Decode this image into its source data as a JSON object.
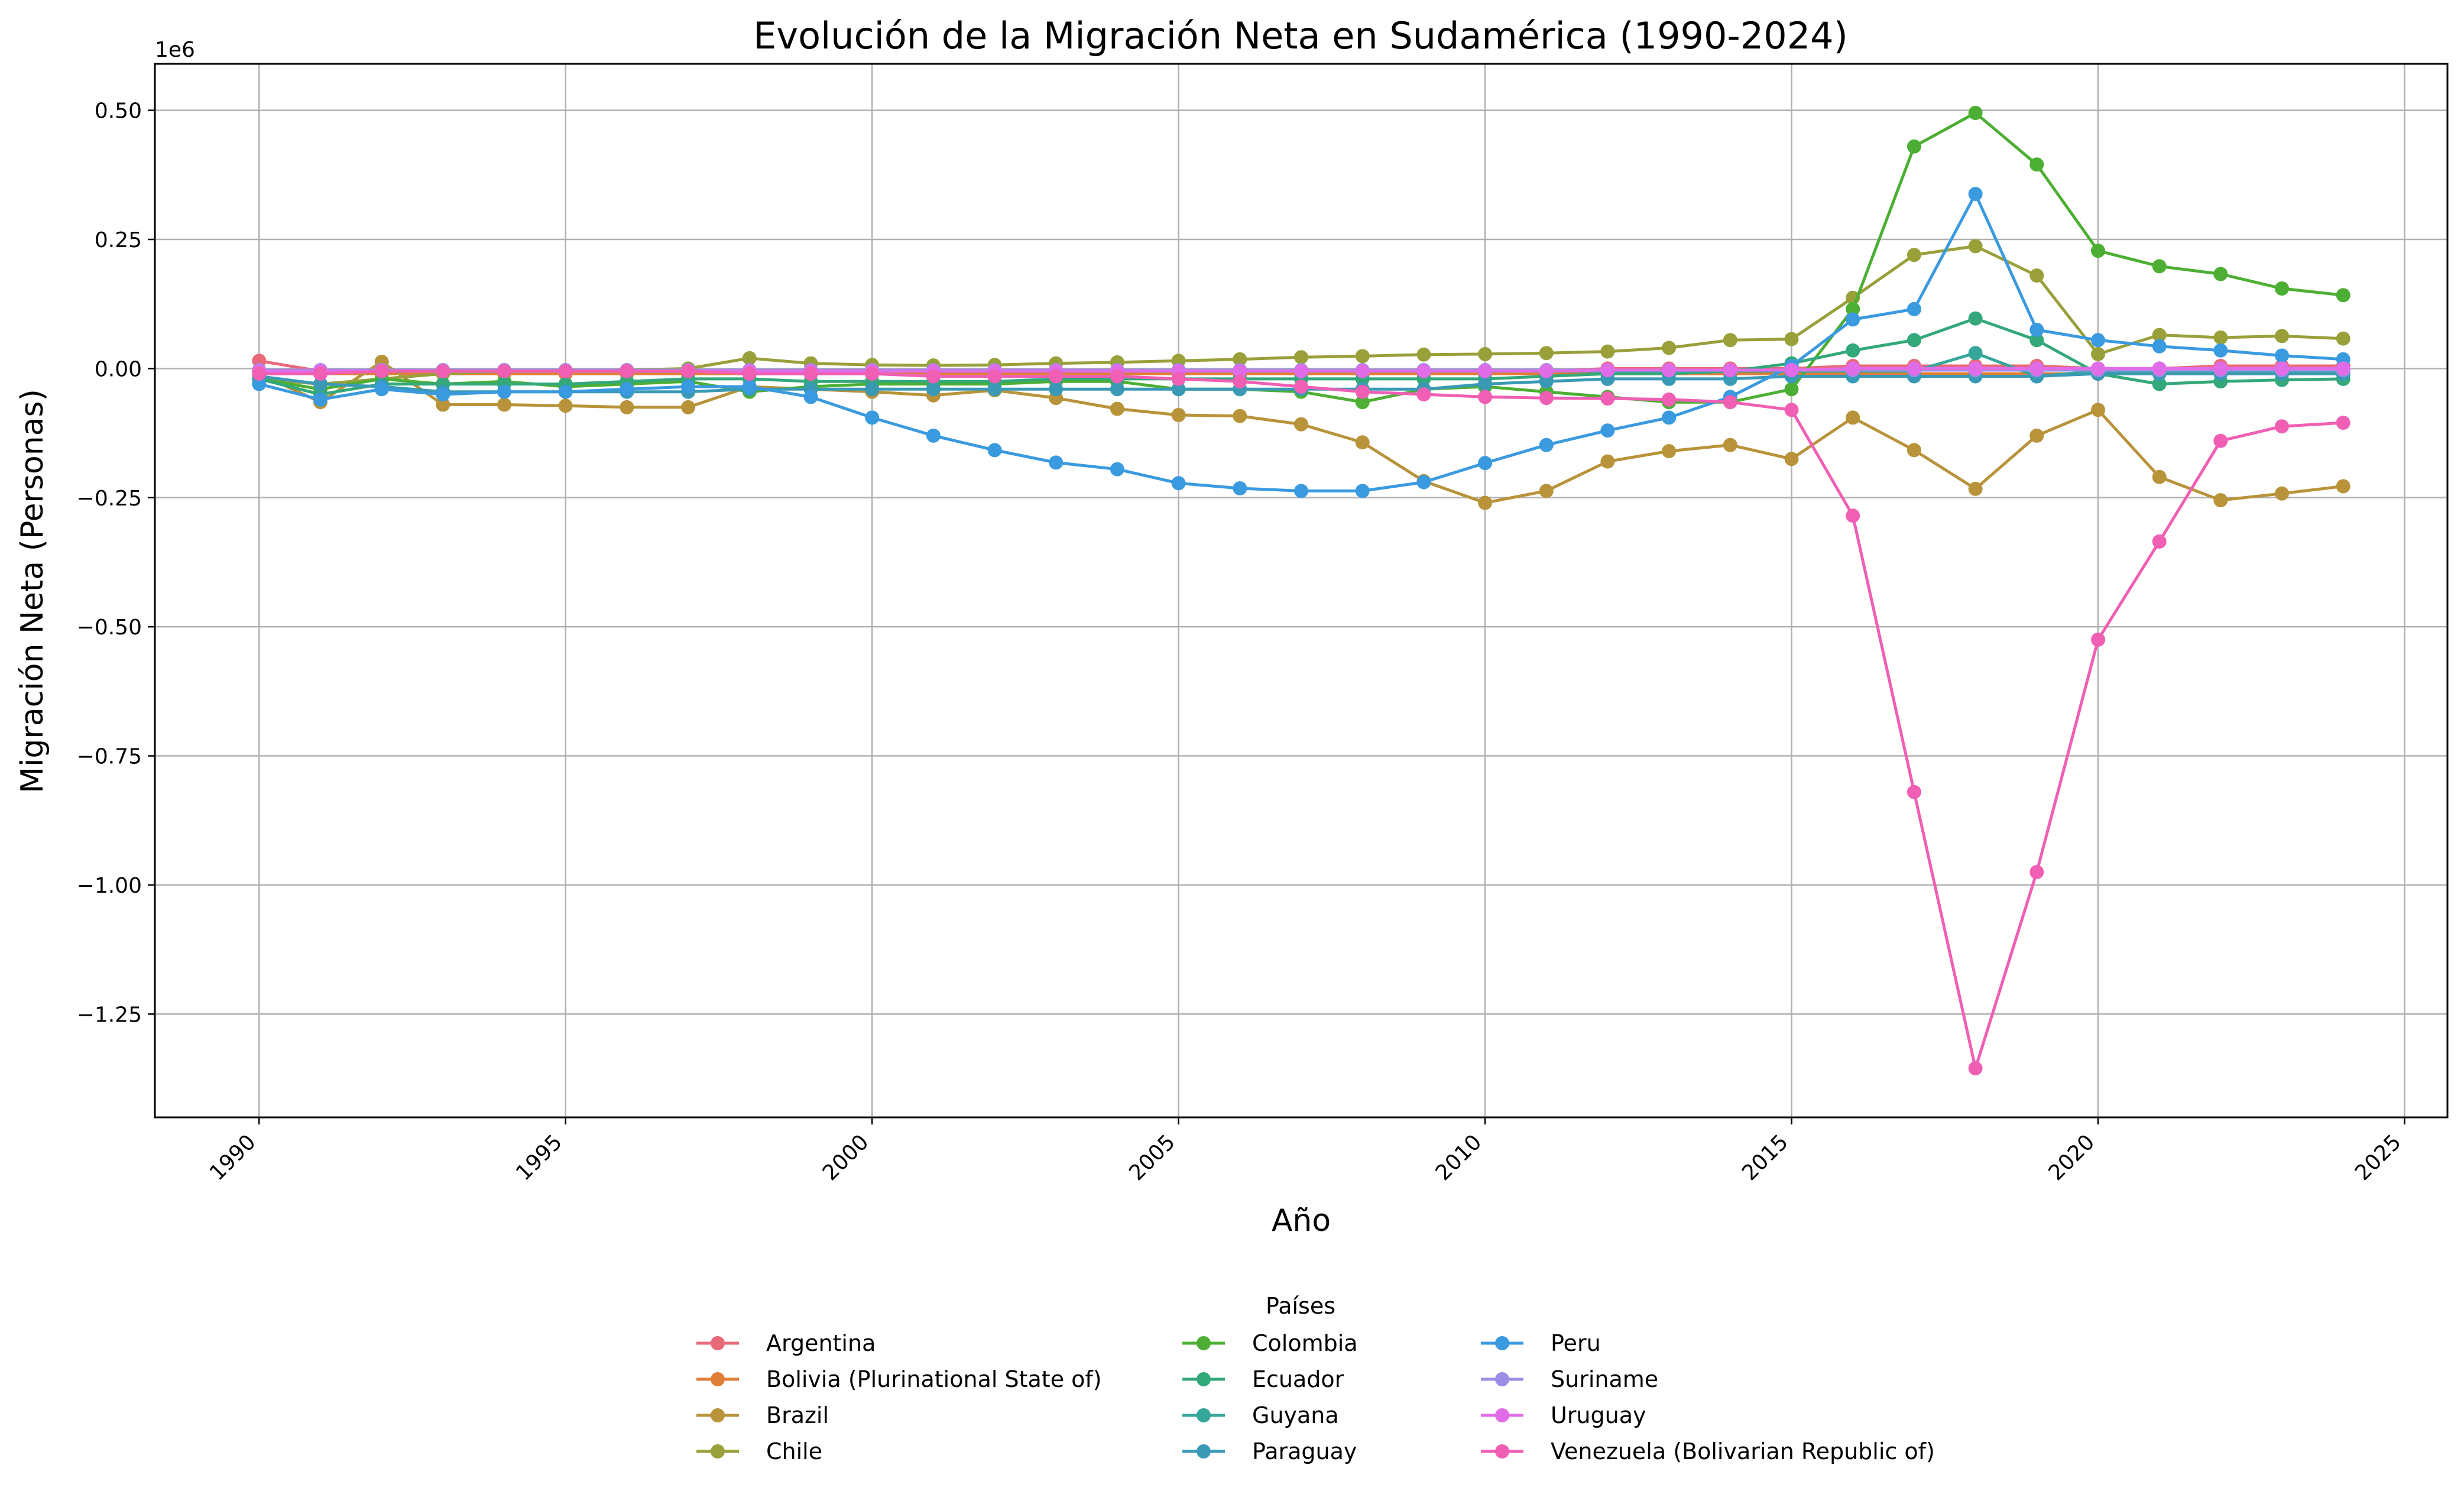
{
  "chart_data": {
    "type": "line",
    "title": "Evolución de la Migración Neta en Sudamérica (1990-2024)",
    "xlabel": "Año",
    "ylabel": "Migración Neta (Personas)",
    "y_offset_label": "1e6",
    "xlim": [
      1988.3,
      2025.7
    ],
    "ylim": [
      -1.45,
      0.59
    ],
    "x_ticks": [
      1990,
      1995,
      2000,
      2005,
      2010,
      2015,
      2020,
      2025
    ],
    "x_tick_labels": [
      "1990",
      "1995",
      "2000",
      "2005",
      "2010",
      "2015",
      "2020",
      "2025"
    ],
    "y_ticks": [
      0.5,
      0.25,
      0.0,
      -0.25,
      -0.5,
      -0.75,
      -1.0,
      -1.25
    ],
    "y_tick_labels": [
      "0.50",
      "0.25",
      "0.00",
      "−0.25",
      "−0.50",
      "−0.75",
      "−1.00",
      "−1.25"
    ],
    "grid": true,
    "legend": {
      "title": "Países",
      "placement": "bottom-center",
      "columns": 3
    },
    "x": [
      1990,
      1991,
      1992,
      1993,
      1994,
      1995,
      1996,
      1997,
      1998,
      1999,
      2000,
      2001,
      2002,
      2003,
      2004,
      2005,
      2006,
      2007,
      2008,
      2009,
      2010,
      2011,
      2012,
      2013,
      2014,
      2015,
      2016,
      2017,
      2018,
      2019,
      2020,
      2021,
      2022,
      2023,
      2024
    ],
    "series": [
      {
        "name": "Argentina",
        "color": "#e8697a",
        "values": [
          0.015,
          -0.005,
          -0.005,
          -0.005,
          -0.005,
          -0.005,
          -0.005,
          -0.005,
          -0.005,
          -0.005,
          -0.005,
          -0.005,
          -0.005,
          -0.005,
          -0.005,
          -0.005,
          -0.005,
          -0.005,
          -0.005,
          -0.005,
          -0.005,
          -0.005,
          0.0,
          0.0,
          0.0,
          0.0,
          0.005,
          0.005,
          0.005,
          0.005,
          0.0,
          0.0,
          0.005,
          0.005,
          0.005
        ]
      },
      {
        "name": "Bolivia (Plurinational State of)",
        "color": "#e07d36",
        "values": [
          -0.01,
          -0.01,
          -0.01,
          -0.01,
          -0.01,
          -0.01,
          -0.01,
          -0.01,
          -0.01,
          -0.01,
          -0.01,
          -0.01,
          -0.01,
          -0.01,
          -0.01,
          -0.01,
          -0.01,
          -0.01,
          -0.01,
          -0.01,
          -0.01,
          -0.01,
          -0.01,
          -0.01,
          -0.01,
          -0.01,
          -0.01,
          -0.01,
          -0.01,
          -0.01,
          -0.01,
          -0.01,
          -0.01,
          -0.01,
          -0.01
        ]
      },
      {
        "name": "Brazil",
        "color": "#b8933a",
        "values": [
          -0.01,
          -0.065,
          0.013,
          -0.07,
          -0.07,
          -0.072,
          -0.075,
          -0.075,
          -0.035,
          -0.04,
          -0.045,
          -0.052,
          -0.042,
          -0.057,
          -0.078,
          -0.09,
          -0.092,
          -0.108,
          -0.143,
          -0.218,
          -0.26,
          -0.237,
          -0.18,
          -0.16,
          -0.148,
          -0.175,
          -0.095,
          -0.158,
          -0.233,
          -0.13,
          -0.08,
          -0.21,
          -0.255,
          -0.242,
          -0.228
        ]
      },
      {
        "name": "Chile",
        "color": "#99a03a",
        "values": [
          -0.02,
          -0.03,
          -0.02,
          -0.01,
          -0.005,
          -0.005,
          -0.003,
          0.0,
          0.02,
          0.01,
          0.007,
          0.006,
          0.007,
          0.01,
          0.012,
          0.015,
          0.018,
          0.022,
          0.024,
          0.027,
          0.028,
          0.03,
          0.033,
          0.04,
          0.055,
          0.057,
          0.137,
          0.22,
          0.237,
          0.18,
          0.028,
          0.065,
          0.06,
          0.063,
          0.058
        ]
      },
      {
        "name": "Colombia",
        "color": "#4caf33",
        "values": [
          -0.02,
          -0.04,
          -0.02,
          -0.03,
          -0.025,
          -0.035,
          -0.03,
          -0.025,
          -0.045,
          -0.035,
          -0.03,
          -0.03,
          -0.03,
          -0.025,
          -0.025,
          -0.04,
          -0.04,
          -0.045,
          -0.065,
          -0.04,
          -0.035,
          -0.045,
          -0.055,
          -0.065,
          -0.065,
          -0.04,
          0.115,
          0.43,
          0.495,
          0.395,
          0.228,
          0.198,
          0.183,
          0.155,
          0.142
        ]
      },
      {
        "name": "Ecuador",
        "color": "#33a87a",
        "values": [
          -0.02,
          -0.05,
          -0.03,
          -0.03,
          -0.03,
          -0.03,
          -0.025,
          -0.02,
          -0.02,
          -0.025,
          -0.025,
          -0.025,
          -0.025,
          -0.02,
          -0.02,
          -0.02,
          -0.02,
          -0.02,
          -0.02,
          -0.02,
          -0.02,
          -0.015,
          -0.01,
          -0.01,
          -0.005,
          0.01,
          0.035,
          0.055,
          0.097,
          0.055,
          -0.01,
          -0.03,
          -0.025,
          -0.022,
          -0.02
        ]
      },
      {
        "name": "Guyana",
        "color": "#36a69a",
        "values": [
          -0.005,
          -0.005,
          -0.005,
          -0.005,
          -0.005,
          -0.005,
          -0.005,
          -0.005,
          -0.005,
          -0.005,
          -0.005,
          -0.005,
          -0.005,
          -0.005,
          -0.005,
          -0.005,
          -0.005,
          -0.005,
          -0.005,
          -0.005,
          -0.005,
          -0.005,
          -0.005,
          -0.005,
          -0.005,
          -0.005,
          -0.005,
          -0.005,
          0.03,
          -0.015,
          -0.005,
          -0.005,
          -0.005,
          -0.005,
          -0.005
        ]
      },
      {
        "name": "Paraguay",
        "color": "#3a9ab6",
        "values": [
          -0.015,
          -0.03,
          -0.035,
          -0.045,
          -0.045,
          -0.045,
          -0.045,
          -0.045,
          -0.04,
          -0.04,
          -0.04,
          -0.04,
          -0.04,
          -0.04,
          -0.04,
          -0.04,
          -0.04,
          -0.04,
          -0.04,
          -0.04,
          -0.03,
          -0.025,
          -0.02,
          -0.02,
          -0.02,
          -0.015,
          -0.015,
          -0.015,
          -0.015,
          -0.015,
          -0.01,
          -0.01,
          -0.01,
          -0.01,
          -0.01
        ]
      },
      {
        "name": "Peru",
        "color": "#3a9ae0",
        "values": [
          -0.03,
          -0.06,
          -0.04,
          -0.05,
          -0.045,
          -0.045,
          -0.04,
          -0.035,
          -0.035,
          -0.055,
          -0.095,
          -0.13,
          -0.158,
          -0.182,
          -0.195,
          -0.222,
          -0.232,
          -0.237,
          -0.237,
          -0.22,
          -0.183,
          -0.148,
          -0.12,
          -0.095,
          -0.055,
          0.005,
          0.095,
          0.115,
          0.338,
          0.075,
          0.055,
          0.043,
          0.035,
          0.025,
          0.018
        ]
      },
      {
        "name": "Suriname",
        "color": "#9b8ee6",
        "values": [
          -0.003,
          -0.003,
          -0.003,
          -0.003,
          -0.003,
          -0.003,
          -0.003,
          -0.003,
          -0.003,
          -0.003,
          -0.003,
          -0.003,
          -0.003,
          -0.003,
          -0.003,
          -0.003,
          -0.003,
          -0.003,
          -0.003,
          -0.003,
          -0.003,
          -0.003,
          -0.003,
          -0.003,
          -0.003,
          -0.003,
          -0.003,
          -0.003,
          -0.003,
          -0.003,
          -0.003,
          -0.003,
          -0.003,
          -0.003,
          -0.003
        ]
      },
      {
        "name": "Uruguay",
        "color": "#e16ce8",
        "values": [
          -0.005,
          -0.005,
          -0.005,
          -0.005,
          -0.005,
          -0.005,
          -0.005,
          -0.005,
          -0.005,
          -0.005,
          -0.005,
          -0.005,
          -0.005,
          -0.005,
          -0.005,
          -0.005,
          -0.005,
          -0.005,
          -0.005,
          -0.005,
          -0.005,
          -0.005,
          -0.003,
          -0.003,
          -0.003,
          -0.003,
          0.0,
          0.0,
          0.0,
          0.0,
          0.0,
          0.0,
          0.0,
          0.0,
          0.0
        ]
      },
      {
        "name": "Venezuela (Bolivarian Republic of)",
        "color": "#f05fb4",
        "values": [
          -0.01,
          -0.01,
          -0.005,
          -0.005,
          -0.005,
          -0.005,
          -0.005,
          -0.005,
          -0.01,
          -0.01,
          -0.01,
          -0.015,
          -0.015,
          -0.015,
          -0.015,
          -0.02,
          -0.025,
          -0.035,
          -0.045,
          -0.05,
          -0.055,
          -0.057,
          -0.058,
          -0.06,
          -0.065,
          -0.08,
          -0.285,
          -0.82,
          -1.355,
          -0.975,
          -0.525,
          -0.335,
          -0.14,
          -0.112,
          -0.105
        ]
      }
    ]
  }
}
